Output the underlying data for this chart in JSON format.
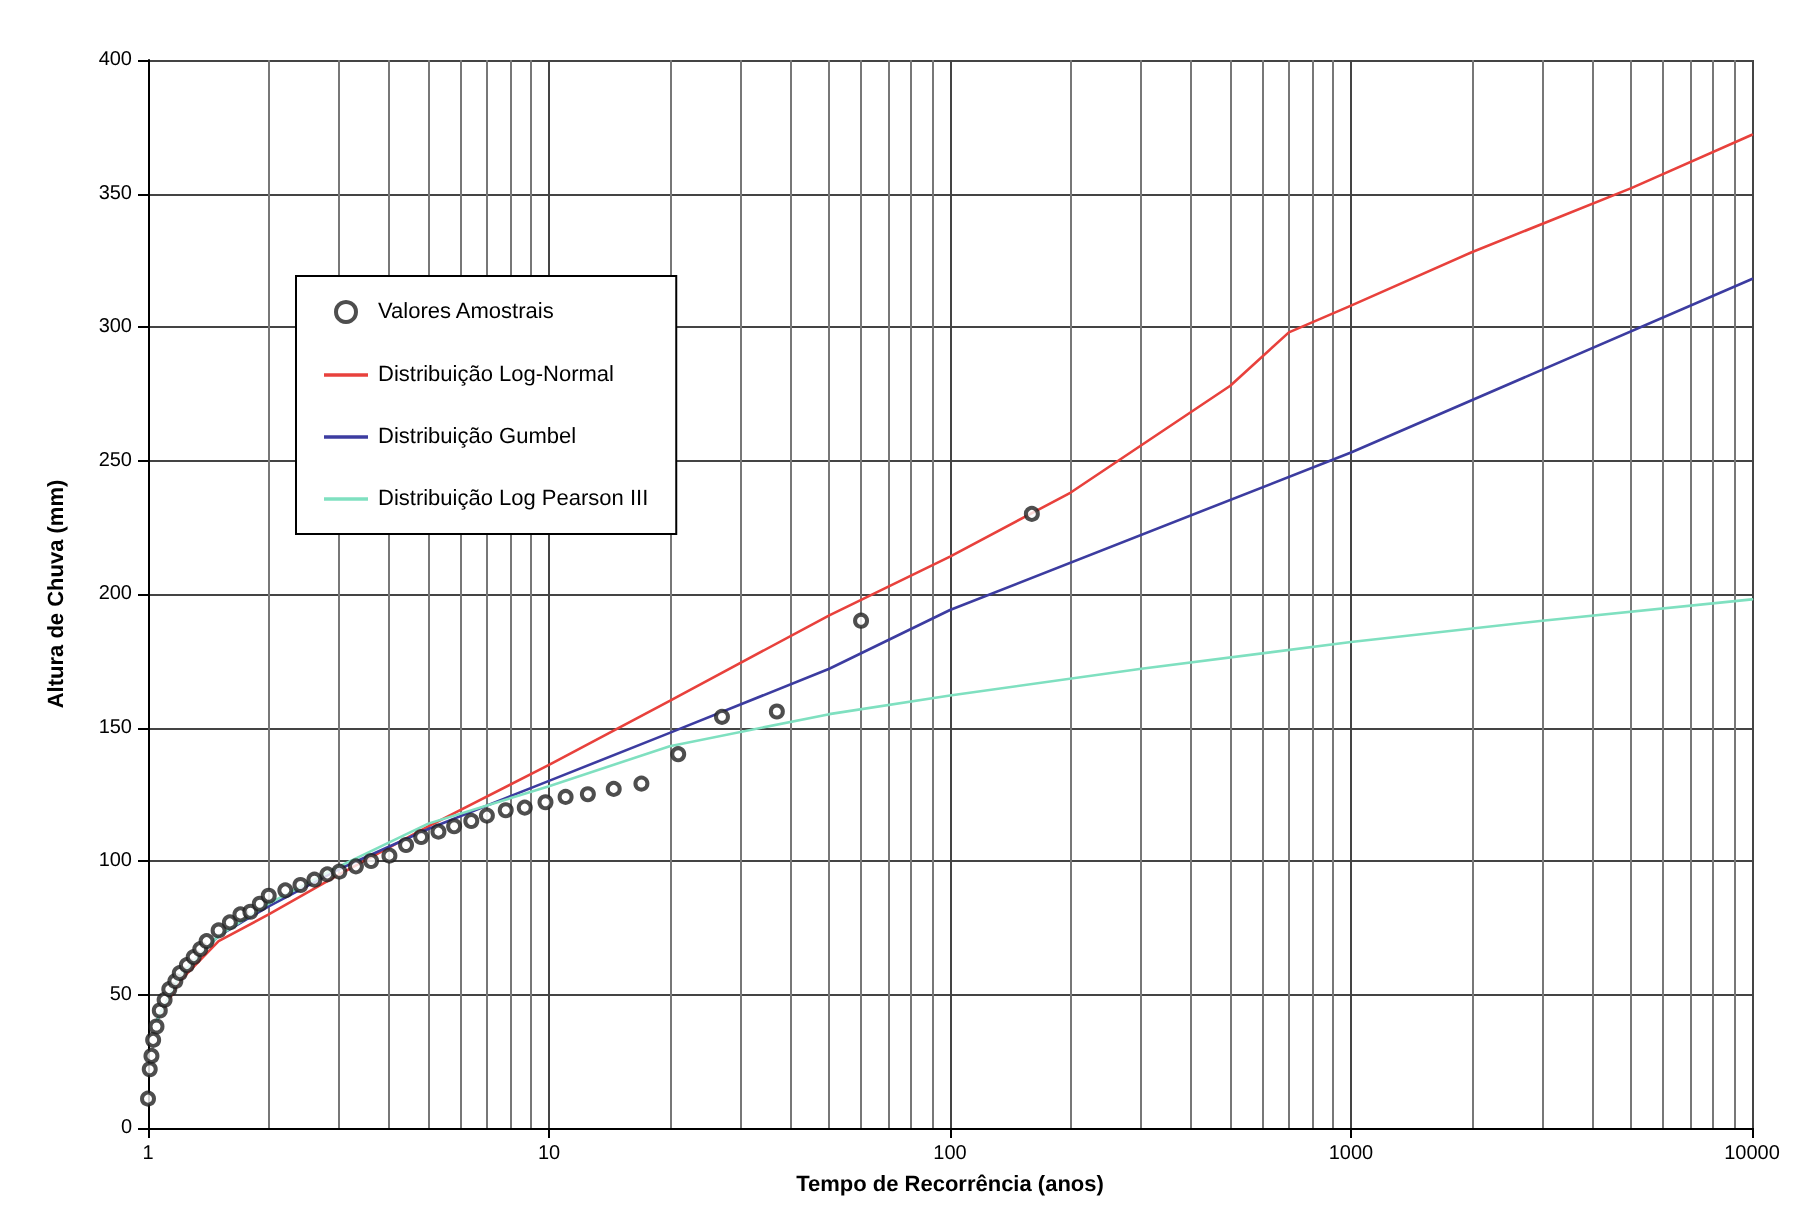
{
  "chart_data": {
    "type": "line",
    "xlabel": "Tempo de Recorrência (anos)",
    "ylabel": "Altura de Chuva (mm)",
    "log": "x",
    "xlim": [
      1,
      10000
    ],
    "xticks": [
      1,
      10,
      100,
      1000,
      10000
    ],
    "ylim": [
      0,
      400
    ],
    "yticks": [
      0,
      50,
      100,
      150,
      200,
      250,
      300,
      350,
      400
    ],
    "grid": true,
    "legend": "top left",
    "series": [
      {
        "name": "Valores Amostrais",
        "type": "scatter",
        "marker": "circle",
        "color": "#222222",
        "x": [
          1.0,
          1.01,
          1.02,
          1.03,
          1.05,
          1.07,
          1.1,
          1.13,
          1.17,
          1.2,
          1.25,
          1.3,
          1.35,
          1.4,
          1.5,
          1.6,
          1.7,
          1.8,
          1.9,
          2.0,
          2.2,
          2.4,
          2.6,
          2.8,
          3.0,
          3.3,
          3.6,
          4.0,
          4.4,
          4.8,
          5.3,
          5.8,
          6.4,
          7.0,
          7.8,
          8.7,
          9.8,
          11,
          12.5,
          14.5,
          17,
          21,
          27,
          37,
          60,
          160
        ],
        "values": [
          11,
          22,
          27,
          33,
          38,
          44,
          48,
          52,
          55,
          58,
          61,
          64,
          67,
          70,
          74,
          77,
          80,
          81,
          84,
          87,
          89,
          91,
          93,
          95,
          96,
          98,
          100,
          102,
          106,
          109,
          111,
          113,
          115,
          117,
          119,
          120,
          122,
          124,
          125,
          127,
          129,
          140,
          154,
          156,
          190,
          230
        ]
      },
      {
        "name": "Distribuição Log-Normal",
        "marker": "none",
        "color": "#e8413c",
        "x": [
          1.05,
          1.2,
          1.5,
          2,
          3,
          5,
          10,
          20,
          50,
          100,
          200,
          500,
          700,
          1000,
          2000,
          5000,
          10000
        ],
        "values": [
          40,
          55,
          70,
          80,
          95,
          113,
          136,
          160,
          192,
          214,
          238,
          278,
          298,
          308,
          328,
          352,
          372
        ]
      },
      {
        "name": "Distribuição Gumbel",
        "marker": "none",
        "color": "#3c3ca0",
        "x": [
          1.05,
          1.2,
          1.5,
          2,
          3,
          5,
          10,
          20,
          50,
          100,
          1000,
          10000
        ],
        "values": [
          40,
          57,
          72,
          83,
          97,
          112,
          130,
          148,
          172,
          194,
          253,
          318
        ]
      },
      {
        "name": "Distribuição Log Pearson III",
        "marker": "none",
        "color": "#7fe0c0",
        "x": [
          1.05,
          1.2,
          1.5,
          2,
          3,
          5,
          10,
          20,
          50,
          100,
          300,
          1000,
          3000,
          10000
        ],
        "values": [
          40,
          57,
          72,
          84,
          98,
          114,
          128,
          143,
          155,
          162,
          172,
          182,
          190,
          198
        ]
      }
    ]
  }
}
